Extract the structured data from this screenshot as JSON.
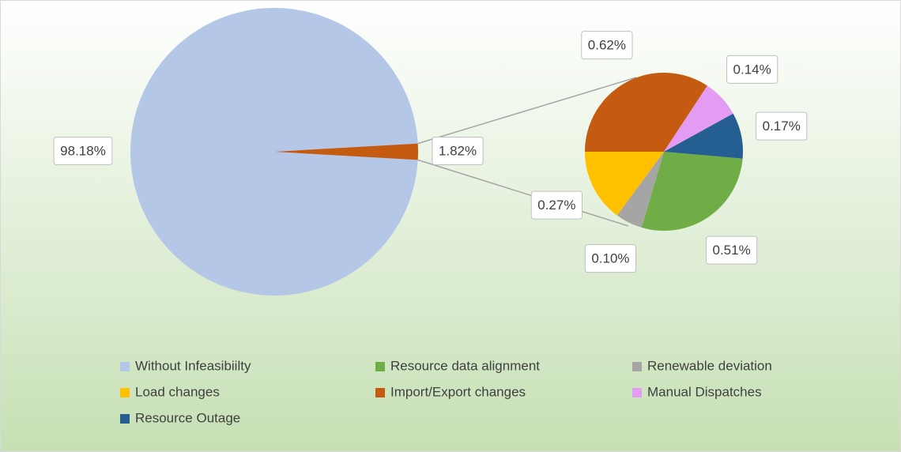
{
  "chart_data": {
    "type": "pie-of-pie",
    "categories": [
      "Without Infeasibiilty",
      "Resource data alignment",
      "Renewable deviation",
      "Load changes",
      "Import/Export changes",
      "Manual Dispatches",
      "Resource Outage"
    ],
    "values": [
      98.18,
      0.51,
      0.1,
      0.27,
      0.62,
      0.14,
      0.17
    ],
    "value_labels": [
      "98.18%",
      "0.51%",
      "0.10%",
      "0.27%",
      "0.62%",
      "0.14%",
      "0.17%"
    ],
    "colors": [
      "#b4c7e7",
      "#70ad47",
      "#a5a5a5",
      "#ffc000",
      "#c55a11",
      "#e49cf2",
      "#255e91"
    ],
    "other_value": 1.82,
    "other_value_label": "1.82%",
    "other_color": "#c55a11",
    "legend": "bottom"
  }
}
